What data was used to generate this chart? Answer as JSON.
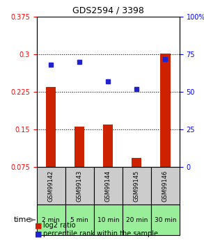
{
  "title": "GDS2594 / 3398",
  "samples": [
    "GSM99142",
    "GSM99143",
    "GSM99144",
    "GSM99145",
    "GSM99146"
  ],
  "time_labels": [
    "2 min",
    "5 min",
    "10 min",
    "20 min",
    "30 min"
  ],
  "log2_ratio": [
    0.235,
    0.155,
    0.16,
    0.093,
    0.302
  ],
  "percentile_rank": [
    68,
    70,
    57,
    52,
    72
  ],
  "bar_color": "#cc2200",
  "dot_color": "#2222cc",
  "ylim_left": [
    0.075,
    0.375
  ],
  "ylim_right": [
    0,
    100
  ],
  "yticks_left": [
    0.075,
    0.15,
    0.225,
    0.3,
    0.375
  ],
  "yticks_right": [
    0,
    25,
    50,
    75,
    100
  ],
  "ytick_labels_left": [
    "0.075",
    "0.15",
    "0.225",
    "0.3",
    "0.375"
  ],
  "ytick_labels_right": [
    "0",
    "25",
    "50",
    "75",
    "100%"
  ],
  "hline_values": [
    0.15,
    0.225,
    0.3
  ],
  "sample_box_color": "#cccccc",
  "time_box_color": "#99ee99",
  "legend_labels": [
    "log2 ratio",
    "percentile rank within the sample"
  ],
  "background_color": "#ffffff",
  "plot_bg_color": "#ffffff"
}
